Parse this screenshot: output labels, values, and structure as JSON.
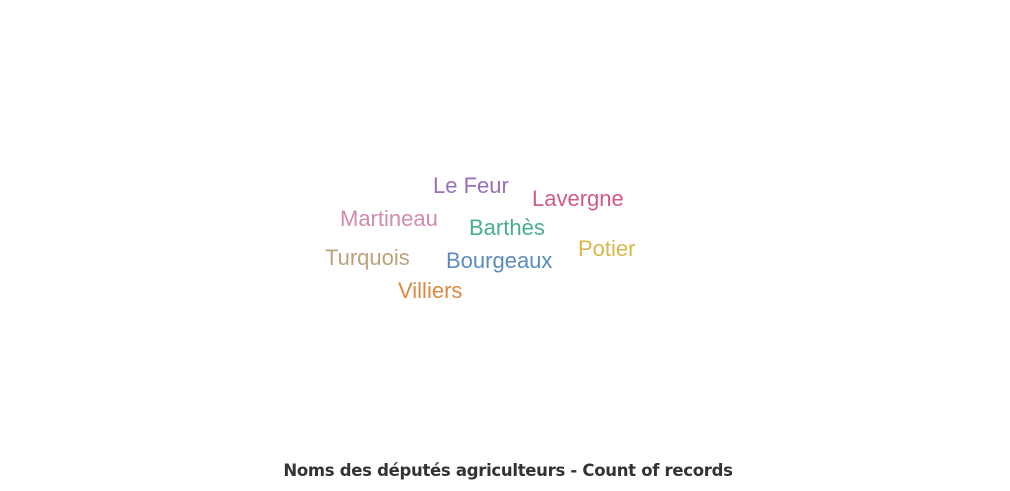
{
  "chart_data": {
    "type": "wordcloud",
    "title": "Noms des députés agriculteurs - Count of records",
    "words": [
      {
        "text": "Le Feur",
        "color": "#9a6fb8"
      },
      {
        "text": "Lavergne",
        "color": "#d45a84"
      },
      {
        "text": "Martineau",
        "color": "#d28bb0"
      },
      {
        "text": "Barthès",
        "color": "#4aae8c"
      },
      {
        "text": "Potier",
        "color": "#d8b84a"
      },
      {
        "text": "Turquois",
        "color": "#bca27a"
      },
      {
        "text": "Bourgeaux",
        "color": "#5b8cc0"
      },
      {
        "text": "Villiers",
        "color": "#dc8a42"
      }
    ]
  }
}
